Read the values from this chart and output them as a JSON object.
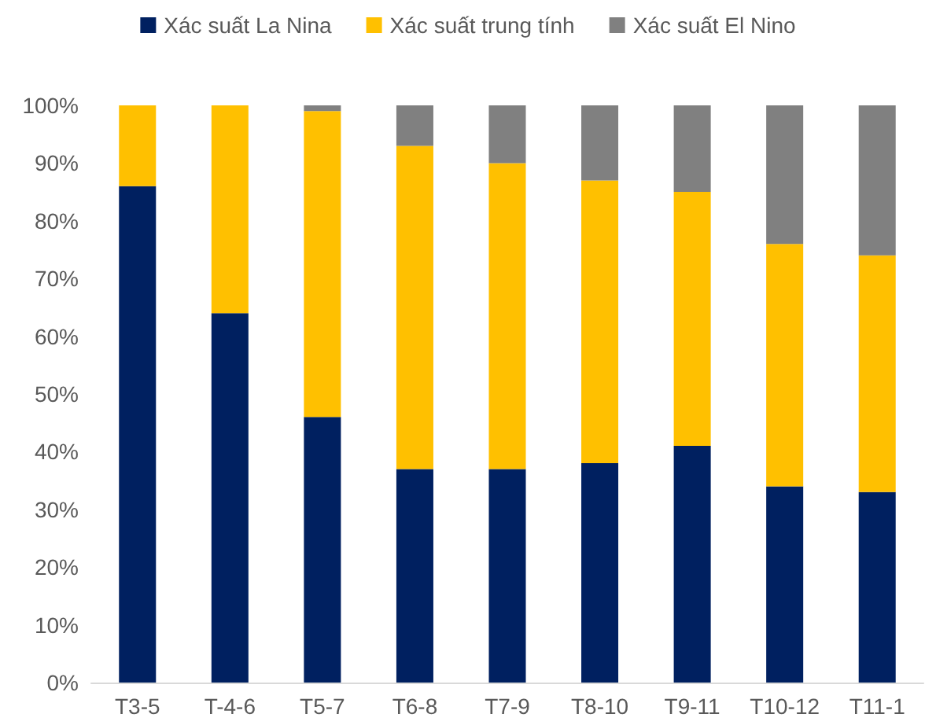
{
  "chart_data": {
    "type": "bar",
    "stacked": true,
    "categories": [
      "T3-5",
      "T-4-6",
      "T5-7",
      "T6-8",
      "T7-9",
      "T8-10",
      "T9-11",
      "T10-12",
      "T11-1"
    ],
    "series": [
      {
        "name": "Xác suất La Nina",
        "color": "#002060",
        "values": [
          86,
          64,
          46,
          37,
          37,
          38,
          41,
          34,
          33
        ]
      },
      {
        "name": "Xác suất trung tính",
        "color": "#ffc000",
        "values": [
          14,
          36,
          53,
          56,
          53,
          49,
          44,
          42,
          41
        ]
      },
      {
        "name": "Xác suất El Nino",
        "color": "#808080",
        "values": [
          0,
          0,
          1,
          7,
          10,
          13,
          15,
          24,
          26
        ]
      }
    ],
    "ylim": [
      0,
      100
    ],
    "yticks": [
      {
        "value": 0,
        "label": "0%"
      },
      {
        "value": 10,
        "label": "10%"
      },
      {
        "value": 20,
        "label": "20%"
      },
      {
        "value": 30,
        "label": "30%"
      },
      {
        "value": 40,
        "label": "40%"
      },
      {
        "value": 50,
        "label": "50%"
      },
      {
        "value": 60,
        "label": "60%"
      },
      {
        "value": 70,
        "label": "70%"
      },
      {
        "value": 80,
        "label": "80%"
      },
      {
        "value": 90,
        "label": "90%"
      },
      {
        "value": 100,
        "label": "100%"
      }
    ],
    "grid": false,
    "legend": "top"
  }
}
